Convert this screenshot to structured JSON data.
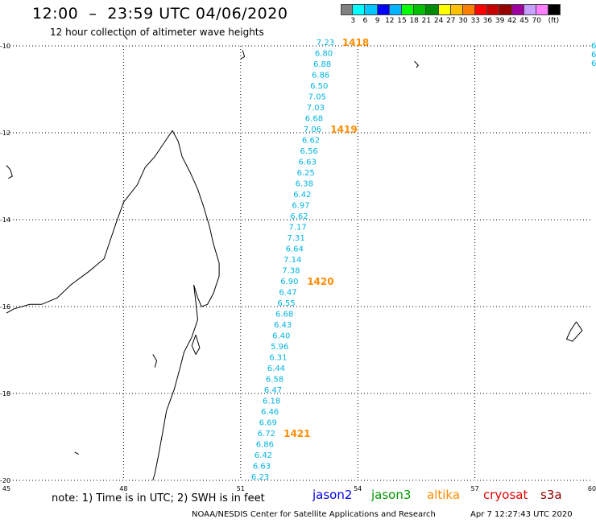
{
  "header": {
    "title": "12:00  –  23:59 UTC 04/06/2020",
    "subtitle": "12 hour collection of altimeter wave heights"
  },
  "colorbar": {
    "colors": [
      "#808080",
      "#00ffff",
      "#00c8ff",
      "#0000ff",
      "#00b4ff",
      "#00ff00",
      "#00c000",
      "#008c00",
      "#ffff00",
      "#ffc000",
      "#ff8000",
      "#ff0000",
      "#c80000",
      "#960000",
      "#a000a0",
      "#c8a0ff",
      "#ff80ff",
      "#000000"
    ],
    "labels": [
      "3",
      "6",
      "9",
      "12",
      "15",
      "18",
      "21",
      "24",
      "27",
      "30",
      "33",
      "36",
      "39",
      "42",
      "45",
      "70",
      "(ft)"
    ]
  },
  "map": {
    "lat_labels": [
      "-10",
      "-12",
      "-14",
      "-16",
      "-18",
      "-20"
    ],
    "lon_labels": [
      "45",
      "48",
      "51",
      "54",
      "57",
      "60"
    ],
    "track_color": "#00b4e0",
    "time_color": "#ff8c00",
    "track": [
      {
        "lon": 53.4,
        "lat": -9.93,
        "v": "7.23"
      },
      {
        "lon": 53.36,
        "lat": -10.18,
        "v": "6.80"
      },
      {
        "lon": 53.32,
        "lat": -10.43,
        "v": "6.88"
      },
      {
        "lon": 53.28,
        "lat": -10.68,
        "v": "6.86"
      },
      {
        "lon": 53.24,
        "lat": -10.93,
        "v": "6.50"
      },
      {
        "lon": 53.19,
        "lat": -11.18,
        "v": "7.05"
      },
      {
        "lon": 53.15,
        "lat": -11.43,
        "v": "7.03"
      },
      {
        "lon": 53.11,
        "lat": -11.68,
        "v": "6.68"
      },
      {
        "lon": 53.07,
        "lat": -11.93,
        "v": "7.06"
      },
      {
        "lon": 53.03,
        "lat": -12.18,
        "v": "6.62"
      },
      {
        "lon": 52.98,
        "lat": -12.43,
        "v": "6.56"
      },
      {
        "lon": 52.94,
        "lat": -12.68,
        "v": "6.63"
      },
      {
        "lon": 52.9,
        "lat": -12.93,
        "v": "6.25"
      },
      {
        "lon": 52.86,
        "lat": -13.18,
        "v": "6.38"
      },
      {
        "lon": 52.81,
        "lat": -13.43,
        "v": "6.42"
      },
      {
        "lon": 52.77,
        "lat": -13.68,
        "v": "6.97"
      },
      {
        "lon": 52.73,
        "lat": -13.93,
        "v": "6.62"
      },
      {
        "lon": 52.69,
        "lat": -14.18,
        "v": "7.17"
      },
      {
        "lon": 52.65,
        "lat": -14.43,
        "v": "7.31"
      },
      {
        "lon": 52.61,
        "lat": -14.68,
        "v": "6.64"
      },
      {
        "lon": 52.56,
        "lat": -14.93,
        "v": "7.14"
      },
      {
        "lon": 52.52,
        "lat": -15.18,
        "v": "7.38"
      },
      {
        "lon": 52.48,
        "lat": -15.43,
        "v": "6.90"
      },
      {
        "lon": 52.44,
        "lat": -15.68,
        "v": "6.47"
      },
      {
        "lon": 52.4,
        "lat": -15.93,
        "v": "6.55"
      },
      {
        "lon": 52.35,
        "lat": -16.18,
        "v": "6.68"
      },
      {
        "lon": 52.31,
        "lat": -16.43,
        "v": "6.43"
      },
      {
        "lon": 52.27,
        "lat": -16.68,
        "v": "6.40"
      },
      {
        "lon": 52.23,
        "lat": -16.93,
        "v": "5.96"
      },
      {
        "lon": 52.19,
        "lat": -17.18,
        "v": "6.31"
      },
      {
        "lon": 52.14,
        "lat": -17.43,
        "v": "6.44"
      },
      {
        "lon": 52.1,
        "lat": -17.68,
        "v": "6.58"
      },
      {
        "lon": 52.06,
        "lat": -17.93,
        "v": "6.47"
      },
      {
        "lon": 52.02,
        "lat": -18.18,
        "v": "6.18"
      },
      {
        "lon": 51.98,
        "lat": -18.43,
        "v": "6.46"
      },
      {
        "lon": 51.93,
        "lat": -18.68,
        "v": "6.69"
      },
      {
        "lon": 51.89,
        "lat": -18.93,
        "v": "6.72"
      },
      {
        "lon": 51.85,
        "lat": -19.18,
        "v": "6.86"
      },
      {
        "lon": 51.81,
        "lat": -19.43,
        "v": "6.42"
      },
      {
        "lon": 51.77,
        "lat": -19.68,
        "v": "6.63"
      },
      {
        "lon": 51.73,
        "lat": -19.93,
        "v": "6.23"
      }
    ],
    "time_marks": [
      {
        "lon": 53.6,
        "lat": -9.93,
        "t": "1418"
      },
      {
        "lon": 53.3,
        "lat": -11.93,
        "t": "1419"
      },
      {
        "lon": 52.7,
        "lat": -15.43,
        "t": "1420"
      },
      {
        "lon": 52.1,
        "lat": -18.93,
        "t": "1421"
      }
    ],
    "edge_values": [
      "6",
      "6",
      "6"
    ]
  },
  "footer": {
    "note": "note:  1) Time is in UTC;  2) SWH is in feet",
    "satellites": [
      {
        "name": "jason2",
        "color": "#0000e6"
      },
      {
        "name": "jason3",
        "color": "#009900"
      },
      {
        "name": "altika",
        "color": "#ff8c00"
      },
      {
        "name": "cryosat",
        "color": "#e60000"
      },
      {
        "name": "s3a",
        "color": "#8b0000"
      }
    ],
    "credit": "NOAA/NESDIS Center for Satellite Applications and Research",
    "timestamp": "Apr  7 12:27:43 UTC 2020"
  }
}
